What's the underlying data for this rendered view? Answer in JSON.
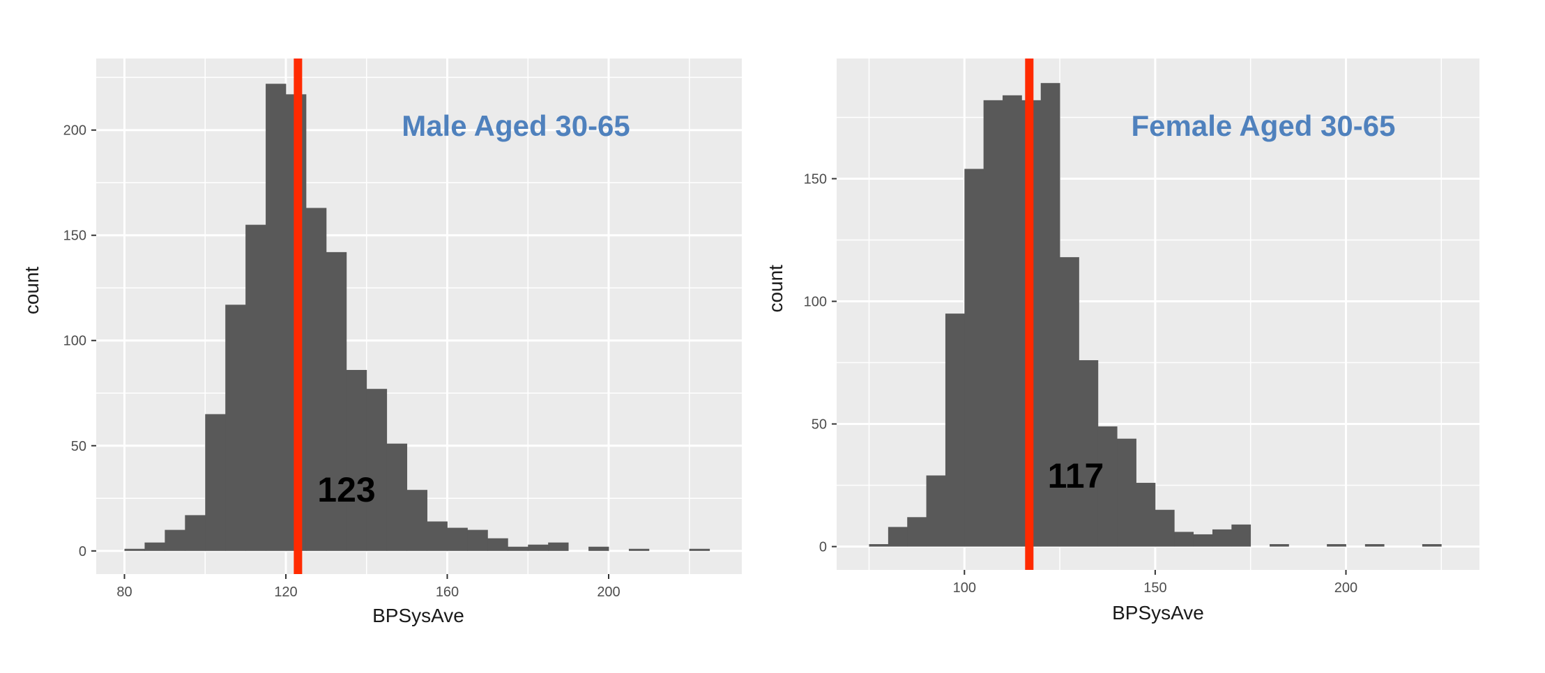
{
  "colors": {
    "panel_bg": "#ebebeb",
    "grid": "#ffffff",
    "bar": "#595959",
    "mean_line": "#ff2a00",
    "title": "#4f81bd",
    "tick_text": "#4d4d4d"
  },
  "chart_data": [
    {
      "type": "bar",
      "title": "Male Aged 30-65",
      "xlabel": "BPSysAve",
      "ylabel": "count",
      "xlim": [
        73,
        233
      ],
      "ylim": [
        -11,
        234
      ],
      "xticks": [
        80,
        120,
        160,
        200
      ],
      "xtick_labels": [
        "80",
        "120",
        "160",
        "200"
      ],
      "yticks": [
        0,
        50,
        100,
        150,
        200
      ],
      "ytick_labels": [
        "0",
        "50",
        "100",
        "150",
        "200"
      ],
      "bins": {
        "left": [
          80,
          85,
          90,
          95,
          100,
          105,
          110,
          115,
          120,
          125,
          130,
          135,
          140,
          145,
          150,
          155,
          160,
          165,
          170,
          175,
          180,
          185,
          190,
          195,
          200,
          205,
          210,
          215,
          220
        ],
        "width": 5,
        "counts": [
          1,
          4,
          10,
          17,
          65,
          117,
          155,
          222,
          217,
          163,
          142,
          86,
          77,
          51,
          29,
          14,
          11,
          10,
          6,
          2,
          3,
          4,
          0,
          2,
          0,
          1,
          0,
          0,
          1
        ]
      },
      "mean": 123,
      "mean_label": "123",
      "grid": true
    },
    {
      "type": "bar",
      "title": "Female Aged 30-65",
      "xlabel": "BPSysAve",
      "ylabel": "count",
      "xlim": [
        66.5,
        235
      ],
      "ylim": [
        -9.5,
        199
      ],
      "xticks": [
        100,
        150,
        200
      ],
      "xtick_labels": [
        "100",
        "150",
        "200"
      ],
      "yticks": [
        0,
        50,
        100,
        150
      ],
      "ytick_labels": [
        "0",
        "50",
        "100",
        "150"
      ],
      "bins": {
        "left": [
          75,
          80,
          85,
          90,
          95,
          100,
          105,
          110,
          115,
          120,
          125,
          130,
          135,
          140,
          145,
          150,
          155,
          160,
          165,
          170,
          175,
          180,
          185,
          190,
          195,
          200,
          205,
          210,
          215,
          220
        ],
        "width": 5,
        "counts": [
          1,
          8,
          12,
          29,
          95,
          154,
          182,
          184,
          182,
          189,
          118,
          76,
          49,
          44,
          26,
          15,
          6,
          5,
          7,
          9,
          0,
          1,
          0,
          0,
          1,
          0,
          1,
          0,
          0,
          1
        ]
      },
      "mean": 117,
      "mean_label": "117",
      "grid": true
    }
  ]
}
